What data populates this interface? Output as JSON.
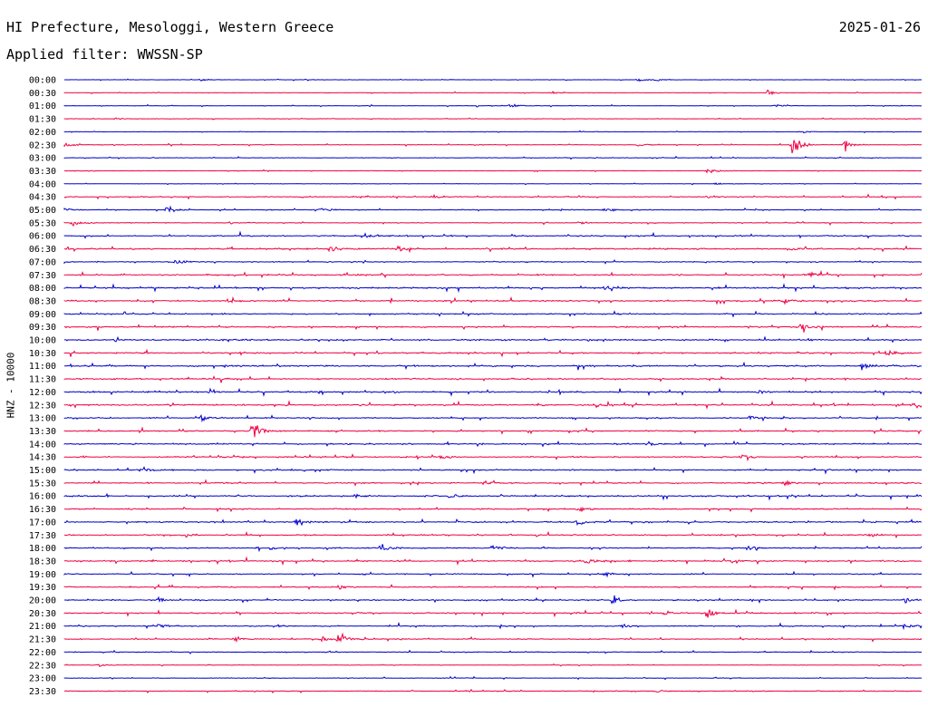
{
  "header": {
    "title": "HI Prefecture, Mesologgi, Western Greece",
    "date": "2025-01-26",
    "filter": "Applied filter: WWSSN-SP"
  },
  "colors": {
    "blue": "#0000cc",
    "red": "#ee0044"
  },
  "chart_data": {
    "type": "line",
    "title": "HI Prefecture, Mesologgi, Western Greece",
    "ylabel": "HNZ - 10000",
    "xlabel": "",
    "trace_colors": [
      "#0000cc",
      "#ee0044"
    ],
    "row_labels": [
      "00:00",
      "00:30",
      "01:00",
      "01:30",
      "02:00",
      "02:30",
      "03:00",
      "03:30",
      "04:00",
      "04:30",
      "05:00",
      "05:30",
      "06:00",
      "06:30",
      "07:00",
      "07:30",
      "08:00",
      "08:30",
      "09:00",
      "09:30",
      "10:00",
      "10:30",
      "11:00",
      "11:30",
      "12:00",
      "12:30",
      "13:00",
      "13:30",
      "14:00",
      "14:30",
      "15:00",
      "15:30",
      "16:00",
      "16:30",
      "17:00",
      "17:30",
      "18:00",
      "18:30",
      "19:00",
      "19:30",
      "20:00",
      "20:30",
      "21:00",
      "21:30",
      "22:00",
      "22:30",
      "23:00",
      "23:30"
    ],
    "noise_level": [
      0.3,
      0.3,
      0.4,
      0.3,
      0.3,
      0.5,
      0.4,
      0.3,
      0.3,
      0.7,
      0.5,
      0.6,
      1.0,
      1.1,
      0.7,
      1.0,
      1.1,
      1.0,
      0.9,
      1.0,
      1.1,
      1.1,
      1.2,
      1.0,
      1.1,
      1.1,
      0.8,
      0.9,
      1.0,
      0.9,
      1.0,
      0.9,
      1.0,
      0.9,
      1.0,
      0.9,
      0.9,
      1.0,
      0.8,
      0.8,
      0.9,
      1.0,
      0.9,
      0.7,
      0.6,
      0.4,
      0.4,
      0.5
    ],
    "events": [
      {
        "row": 0,
        "x": 0.16,
        "amp": 2
      },
      {
        "row": 0,
        "x": 0.67,
        "amp": 2
      },
      {
        "row": 0,
        "x": 0.69,
        "amp": 1.5
      },
      {
        "row": 1,
        "x": 0.57,
        "amp": 1.5
      },
      {
        "row": 1,
        "x": 0.82,
        "amp": 4
      },
      {
        "row": 2,
        "x": 0.52,
        "amp": 3
      },
      {
        "row": 2,
        "x": 0.83,
        "amp": 2
      },
      {
        "row": 3,
        "x": 0.06,
        "amp": 1
      },
      {
        "row": 4,
        "x": 0.86,
        "amp": 1.5
      },
      {
        "row": 5,
        "x": 0.0,
        "amp": 3
      },
      {
        "row": 5,
        "x": 0.67,
        "amp": 2
      },
      {
        "row": 5,
        "x": 0.85,
        "amp": 14
      },
      {
        "row": 5,
        "x": 0.91,
        "amp": 7
      },
      {
        "row": 7,
        "x": 0.75,
        "amp": 5
      },
      {
        "row": 8,
        "x": 0.76,
        "amp": 1.5
      },
      {
        "row": 9,
        "x": 0.43,
        "amp": 3
      },
      {
        "row": 9,
        "x": 0.75,
        "amp": 2
      },
      {
        "row": 10,
        "x": 0.0,
        "amp": 3
      },
      {
        "row": 10,
        "x": 0.12,
        "amp": 5
      },
      {
        "row": 10,
        "x": 0.3,
        "amp": 3
      },
      {
        "row": 10,
        "x": 0.63,
        "amp": 3
      },
      {
        "row": 11,
        "x": 0.01,
        "amp": 4
      },
      {
        "row": 11,
        "x": 0.6,
        "amp": 2
      },
      {
        "row": 12,
        "x": 0.35,
        "amp": 4
      },
      {
        "row": 13,
        "x": 0.31,
        "amp": 3
      },
      {
        "row": 13,
        "x": 0.39,
        "amp": 5
      },
      {
        "row": 13,
        "x": 0.85,
        "amp": 2
      },
      {
        "row": 14,
        "x": 0.13,
        "amp": 4
      },
      {
        "row": 15,
        "x": 0.87,
        "amp": 4
      },
      {
        "row": 16,
        "x": 0.63,
        "amp": 5
      },
      {
        "row": 17,
        "x": 0.19,
        "amp": 3
      },
      {
        "row": 17,
        "x": 0.84,
        "amp": 4
      },
      {
        "row": 19,
        "x": 0.86,
        "amp": 6
      },
      {
        "row": 21,
        "x": 0.96,
        "amp": 4
      },
      {
        "row": 22,
        "x": 0.93,
        "amp": 5
      },
      {
        "row": 24,
        "x": 0.17,
        "amp": 4
      },
      {
        "row": 24,
        "x": 0.81,
        "amp": 3
      },
      {
        "row": 25,
        "x": 0.62,
        "amp": 4
      },
      {
        "row": 25,
        "x": 0.99,
        "amp": 4
      },
      {
        "row": 26,
        "x": 0.16,
        "amp": 4
      },
      {
        "row": 26,
        "x": 0.8,
        "amp": 3
      },
      {
        "row": 27,
        "x": 0.22,
        "amp": 15
      },
      {
        "row": 28,
        "x": 0.68,
        "amp": 4
      },
      {
        "row": 29,
        "x": 0.44,
        "amp": 3
      },
      {
        "row": 29,
        "x": 0.79,
        "amp": 4
      },
      {
        "row": 30,
        "x": 0.09,
        "amp": 4
      },
      {
        "row": 31,
        "x": 0.49,
        "amp": 4
      },
      {
        "row": 31,
        "x": 0.84,
        "amp": 5
      },
      {
        "row": 32,
        "x": 0.45,
        "amp": 4
      },
      {
        "row": 32,
        "x": 0.34,
        "amp": 3
      },
      {
        "row": 33,
        "x": 0.6,
        "amp": 4
      },
      {
        "row": 34,
        "x": 0.27,
        "amp": 4
      },
      {
        "row": 34,
        "x": 0.6,
        "amp": 5
      },
      {
        "row": 35,
        "x": 0.14,
        "amp": 3
      },
      {
        "row": 35,
        "x": 0.94,
        "amp": 3
      },
      {
        "row": 36,
        "x": 0.37,
        "amp": 5
      },
      {
        "row": 36,
        "x": 0.5,
        "amp": 4
      },
      {
        "row": 36,
        "x": 0.8,
        "amp": 3
      },
      {
        "row": 37,
        "x": 0.61,
        "amp": 5
      },
      {
        "row": 37,
        "x": 0.78,
        "amp": 3
      },
      {
        "row": 38,
        "x": 0.63,
        "amp": 3
      },
      {
        "row": 39,
        "x": 0.32,
        "amp": 3
      },
      {
        "row": 40,
        "x": 0.11,
        "amp": 3
      },
      {
        "row": 40,
        "x": 0.64,
        "amp": 5
      },
      {
        "row": 40,
        "x": 0.98,
        "amp": 3
      },
      {
        "row": 41,
        "x": 0.7,
        "amp": 4
      },
      {
        "row": 41,
        "x": 0.75,
        "amp": 7
      },
      {
        "row": 42,
        "x": 0.11,
        "amp": 3
      },
      {
        "row": 42,
        "x": 0.65,
        "amp": 3
      },
      {
        "row": 42,
        "x": 0.98,
        "amp": 3
      },
      {
        "row": 43,
        "x": 0.2,
        "amp": 3
      },
      {
        "row": 43,
        "x": 0.3,
        "amp": 4
      },
      {
        "row": 43,
        "x": 0.32,
        "amp": 12
      },
      {
        "row": 45,
        "x": 0.04,
        "amp": 2
      },
      {
        "row": 47,
        "x": 0.69,
        "amp": 2
      }
    ]
  }
}
